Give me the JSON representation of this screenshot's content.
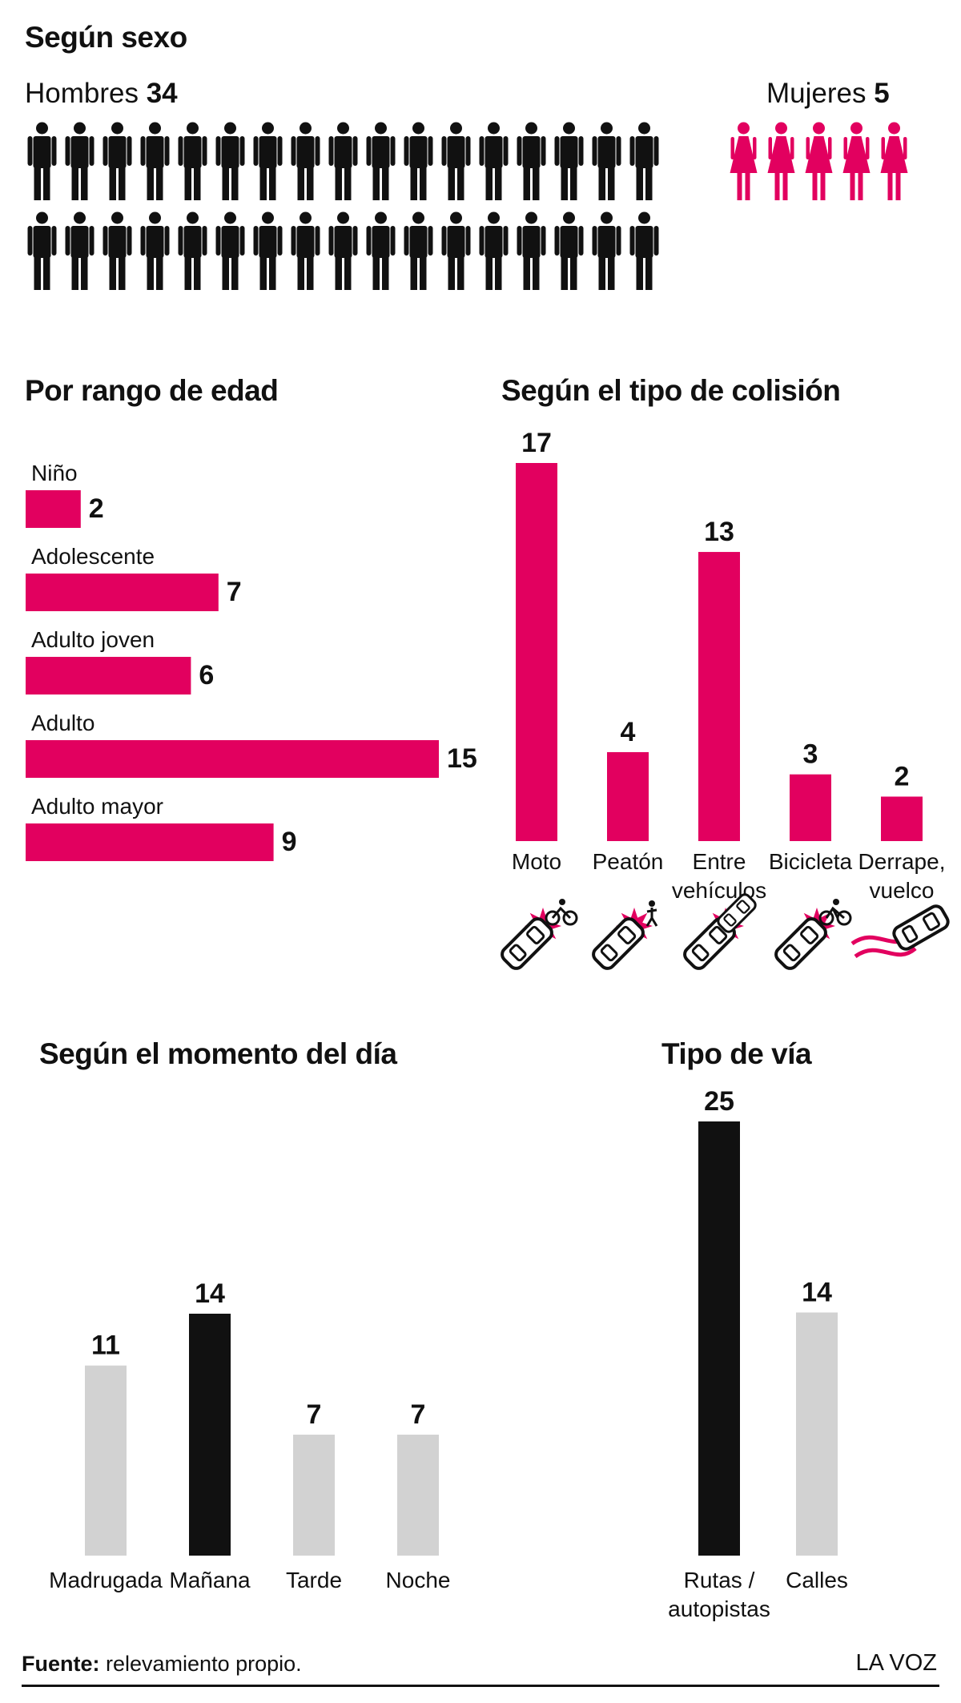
{
  "colors": {
    "accent": "#e2005f",
    "dark": "#111111",
    "muted": "#d2d2d2"
  },
  "sexo": {
    "title": "Según sexo",
    "hombres_label": "Hombres",
    "hombres_count": "34",
    "hombres_n": 34,
    "hombres_icon": "man-icon",
    "mujeres_label": "Mujeres",
    "mujeres_count": "5",
    "mujeres_n": 5,
    "mujeres_icon": "woman-icon"
  },
  "edad": {
    "title": "Por rango de edad",
    "chart_data": {
      "type": "bar",
      "orientation": "horizontal",
      "categories": [
        "Niño",
        "Adolescente",
        "Adulto joven",
        "Adulto",
        "Adulto mayor"
      ],
      "values": [
        2,
        7,
        6,
        15,
        9
      ],
      "xlim": [
        0,
        15
      ],
      "grid": false
    }
  },
  "colision": {
    "title": "Según el tipo de colisión",
    "chart_data": {
      "type": "bar",
      "categories": [
        "Moto",
        "Peatón",
        "Entre\nvehículos",
        "Bicicleta",
        "Derrape,\nvuelco"
      ],
      "values": [
        17,
        4,
        13,
        3,
        2
      ],
      "icons": [
        "car-motorcycle-collision-icon",
        "car-pedestrian-collision-icon",
        "car-car-collision-icon",
        "car-bicycle-collision-icon",
        "car-skid-rollover-icon"
      ],
      "ylim": [
        0,
        17
      ],
      "grid": false
    }
  },
  "momento": {
    "title": "Según el momento del día",
    "chart_data": {
      "type": "bar",
      "categories": [
        "Madrugada",
        "Mañana",
        "Tarde",
        "Noche"
      ],
      "values": [
        11,
        14,
        7,
        7
      ],
      "highlight": "Mañana",
      "ylim": [
        0,
        14
      ],
      "grid": false
    }
  },
  "via": {
    "title": "Tipo de vía",
    "chart_data": {
      "type": "bar",
      "categories": [
        "Rutas /\nautopistas",
        "Calles"
      ],
      "values": [
        25,
        14
      ],
      "highlight": "Rutas /\nautopistas",
      "ylim": [
        0,
        25
      ],
      "grid": false
    }
  },
  "footer": {
    "source_label": "Fuente:",
    "source_text": "relevamiento propio.",
    "brand": "LA VOZ"
  }
}
